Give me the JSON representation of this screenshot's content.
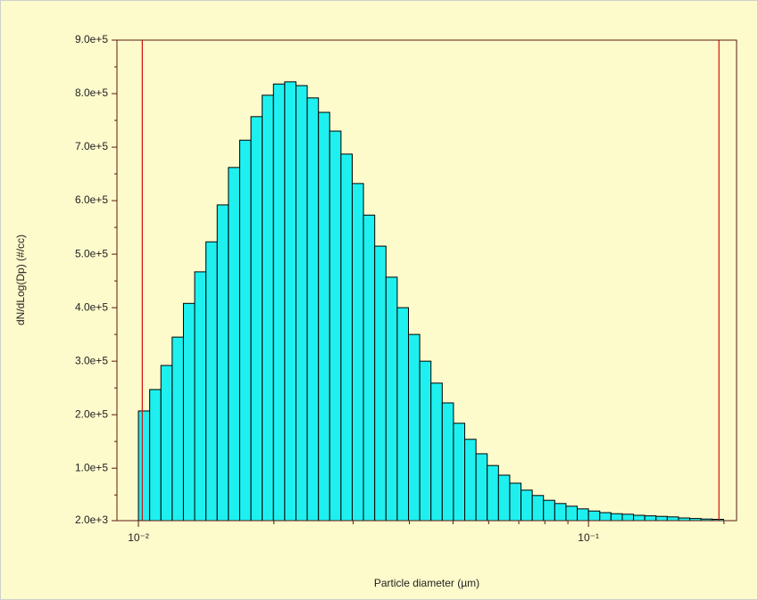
{
  "chart_data": {
    "type": "histogram",
    "xlabel": "Particle diameter (µm)",
    "ylabel": "dN/dLog(Dp) (#/cc)",
    "log_x": true,
    "bins": [
      0.01,
      0.010593,
      0.01122,
      0.011885,
      0.012589,
      0.013335,
      0.014125,
      0.014962,
      0.015849,
      0.016788,
      0.017783,
      0.018836,
      0.019953,
      0.021135,
      0.022387,
      0.023714,
      0.025119,
      0.026607,
      0.028184,
      0.029854,
      0.031623,
      0.033497,
      0.035481,
      0.037584,
      0.039811,
      0.04217,
      0.044668,
      0.047315,
      0.050119,
      0.053088,
      0.056234,
      0.059566,
      0.063096,
      0.066834,
      0.070795,
      0.074989,
      0.079433,
      0.08414,
      0.089125,
      0.094406,
      0.1,
      0.10593,
      0.1122,
      0.11885,
      0.12589,
      0.13335,
      0.14125,
      0.14962,
      0.15849,
      0.16788,
      0.17783,
      0.18836,
      0.19953
    ],
    "values": [
      207000,
      247000,
      292000,
      345000,
      408000,
      467000,
      523000,
      592000,
      662000,
      713000,
      757000,
      797000,
      818000,
      822000,
      815000,
      792000,
      765000,
      730000,
      687000,
      632000,
      573000,
      515000,
      457000,
      400000,
      350000,
      300000,
      259000,
      222000,
      184000,
      154000,
      127000,
      105000,
      87000,
      72000,
      59000,
      49000,
      40000,
      34000,
      29000,
      24000,
      20000,
      17000,
      15000,
      14000,
      12000,
      11000,
      10000,
      9000,
      7000,
      6000,
      5000,
      4500
    ],
    "color": "#1ef0f0",
    "xlim": [
      0.00896,
      0.2133
    ],
    "xticks": [
      {
        "value": 0.01,
        "label": "10⁻²"
      },
      {
        "value": 0.1,
        "label": "10⁻¹"
      }
    ],
    "xminorticks": [
      0.02,
      0.03,
      0.04,
      0.05,
      0.06,
      0.07,
      0.08,
      0.09,
      0.2
    ],
    "ylim": [
      2000,
      900000
    ],
    "yticks": [
      {
        "value": 2000,
        "label": "2.0e+3"
      },
      {
        "value": 100000,
        "label": "1.0e+5"
      },
      {
        "value": 200000,
        "label": "2.0e+5"
      },
      {
        "value": 300000,
        "label": "3.0e+5"
      },
      {
        "value": 400000,
        "label": "4.0e+5"
      },
      {
        "value": 500000,
        "label": "5.0e+5"
      },
      {
        "value": 600000,
        "label": "6.0e+5"
      },
      {
        "value": 700000,
        "label": "7.0e+5"
      },
      {
        "value": 800000,
        "label": "8.0e+5"
      },
      {
        "value": 900000,
        "label": "9.0e+5"
      }
    ],
    "yminorticks": [
      50000,
      150000,
      250000,
      350000,
      450000,
      550000,
      650000,
      750000,
      850000
    ],
    "cursors": [
      0.0102,
      0.1949
    ],
    "cursor_color": "#d01010"
  }
}
